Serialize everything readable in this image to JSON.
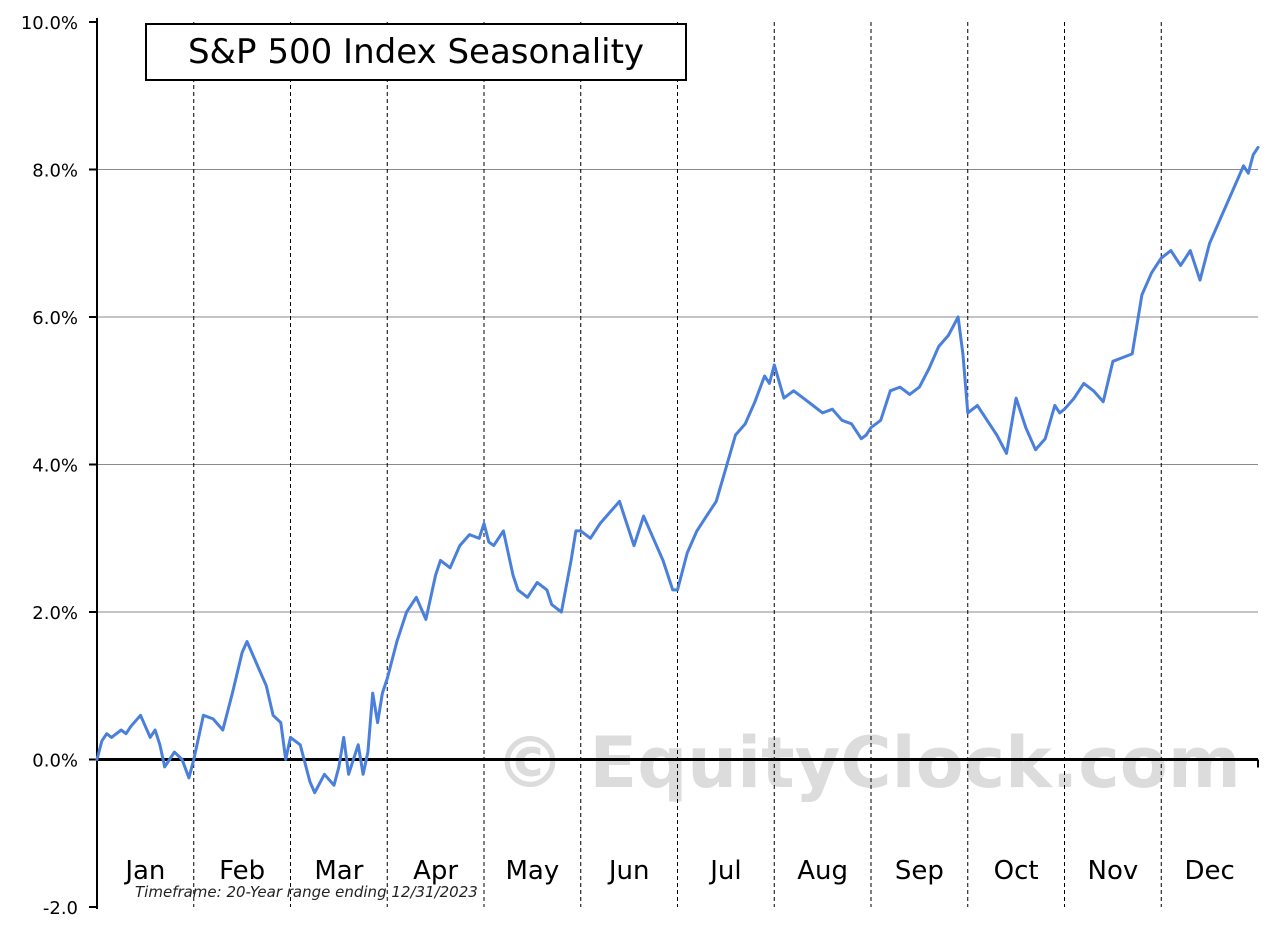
{
  "chart_data": {
    "type": "line",
    "title": "S&P 500 Index Seasonality",
    "footnote": "Timeframe:  20-Year range ending 12/31/2023",
    "watermark": "© EquityClock.com",
    "ylim": [
      -2.0,
      10.0
    ],
    "y_ticks": [
      {
        "value": 10.0,
        "label": "10.0%"
      },
      {
        "value": 8.0,
        "label": "8.0%"
      },
      {
        "value": 6.0,
        "label": "6.0%"
      },
      {
        "value": 4.0,
        "label": "4.0%"
      },
      {
        "value": 2.0,
        "label": "2.0%"
      },
      {
        "value": 0.0,
        "label": "0.0%"
      },
      {
        "value": -2.0,
        "label": "-2.0"
      }
    ],
    "months": [
      "Jan",
      "Feb",
      "Mar",
      "Apr",
      "May",
      "Jun",
      "Jul",
      "Aug",
      "Sep",
      "Oct",
      "Nov",
      "Dec"
    ],
    "line_color": "#4a7fdc",
    "series": [
      {
        "x": [
          0.0,
          0.05,
          0.1,
          0.15,
          0.25,
          0.3,
          0.35,
          0.45,
          0.55,
          0.6,
          0.65,
          0.7,
          0.8,
          0.88,
          0.95,
          1.0,
          1.1,
          1.2,
          1.3,
          1.4,
          1.5,
          1.55,
          1.65,
          1.75,
          1.82,
          1.9,
          1.95,
          2.0,
          2.1,
          2.2,
          2.25,
          2.35,
          2.45,
          2.5,
          2.55,
          2.6,
          2.65,
          2.7,
          2.75,
          2.8,
          2.85,
          2.9,
          2.95,
          3.0,
          3.1,
          3.2,
          3.3,
          3.4,
          3.5,
          3.55,
          3.65,
          3.75,
          3.85,
          3.95,
          4.0,
          4.05,
          4.1,
          4.2,
          4.3,
          4.35,
          4.45,
          4.55,
          4.65,
          4.7,
          4.8,
          4.9,
          4.95,
          5.0,
          5.1,
          5.2,
          5.3,
          5.4,
          5.45,
          5.55,
          5.65,
          5.75,
          5.85,
          5.95,
          6.0,
          6.1,
          6.2,
          6.3,
          6.4,
          6.5,
          6.6,
          6.7,
          6.8,
          6.9,
          6.95,
          7.0,
          7.1,
          7.2,
          7.3,
          7.4,
          7.5,
          7.6,
          7.7,
          7.8,
          7.9,
          7.95,
          8.0,
          8.1,
          8.2,
          8.3,
          8.4,
          8.5,
          8.6,
          8.7,
          8.8,
          8.9,
          8.95,
          9.0,
          9.1,
          9.2,
          9.3,
          9.4,
          9.5,
          9.6,
          9.7,
          9.8,
          9.9,
          9.95,
          10.0,
          10.1,
          10.2,
          10.3,
          10.4,
          10.5,
          10.6,
          10.7,
          10.8,
          10.9,
          10.95,
          11.0,
          11.1,
          11.2,
          11.3,
          11.4,
          11.5,
          11.6,
          11.7,
          11.8,
          11.85,
          11.9,
          11.95,
          12.0
        ],
        "y": [
          0.0,
          0.25,
          0.35,
          0.3,
          0.4,
          0.35,
          0.45,
          0.6,
          0.3,
          0.4,
          0.2,
          -0.1,
          0.1,
          0.0,
          -0.25,
          0.0,
          0.6,
          0.55,
          0.4,
          0.9,
          1.45,
          1.6,
          1.3,
          1.0,
          0.6,
          0.5,
          0.0,
          0.3,
          0.2,
          -0.3,
          -0.45,
          -0.2,
          -0.35,
          -0.1,
          0.3,
          -0.2,
          0.0,
          0.2,
          -0.2,
          0.1,
          0.9,
          0.5,
          0.9,
          1.1,
          1.6,
          2.0,
          2.2,
          1.9,
          2.5,
          2.7,
          2.6,
          2.9,
          3.05,
          3.0,
          3.2,
          2.95,
          2.9,
          3.1,
          2.5,
          2.3,
          2.2,
          2.4,
          2.3,
          2.1,
          2.0,
          2.7,
          3.1,
          3.1,
          3.0,
          3.2,
          3.35,
          3.5,
          3.3,
          2.9,
          3.3,
          3.0,
          2.7,
          2.3,
          2.3,
          2.8,
          3.1,
          3.3,
          3.5,
          3.95,
          4.4,
          4.55,
          4.85,
          5.2,
          5.1,
          5.35,
          4.9,
          5.0,
          4.9,
          4.8,
          4.7,
          4.75,
          4.6,
          4.55,
          4.35,
          4.4,
          4.5,
          4.6,
          5.0,
          5.05,
          4.95,
          5.05,
          5.3,
          5.6,
          5.75,
          6.0,
          5.5,
          4.7,
          4.8,
          4.6,
          4.4,
          4.15,
          4.9,
          4.5,
          4.2,
          4.35,
          4.8,
          4.7,
          4.75,
          4.9,
          5.1,
          5.0,
          4.85,
          5.4,
          5.45,
          5.5,
          6.3,
          6.6,
          6.7,
          6.8,
          6.9,
          6.7,
          6.9,
          6.5,
          7.0,
          7.3,
          7.6,
          7.9,
          8.05,
          7.95,
          8.2,
          8.3
        ]
      }
    ]
  }
}
